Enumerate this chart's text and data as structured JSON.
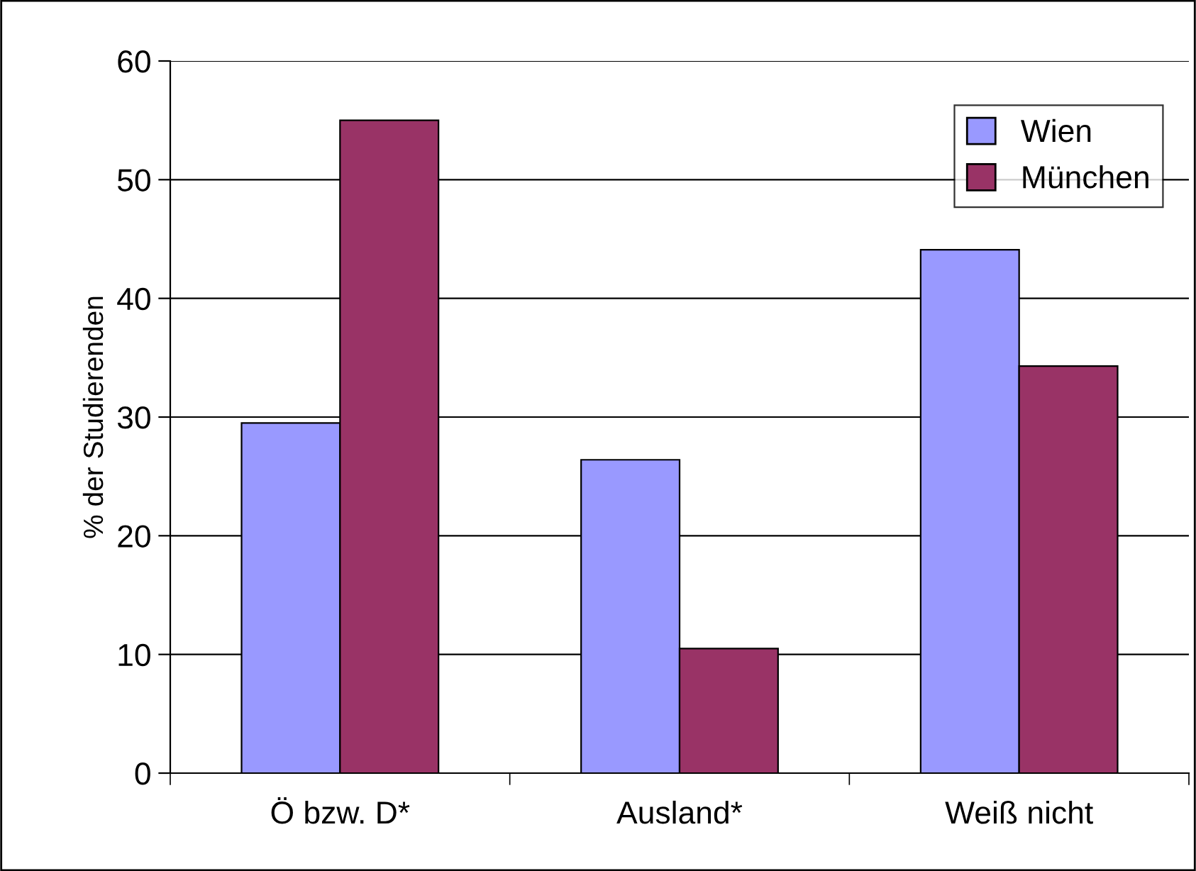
{
  "chart_data": {
    "type": "bar",
    "ylabel": "% der Studierenden",
    "categories": [
      "Ö bzw. D*",
      "Ausland*",
      "Weiß nicht"
    ],
    "series": [
      {
        "name": "Wien",
        "color": "#9999ff",
        "values": [
          29.5,
          26.4,
          44.1
        ]
      },
      {
        "name": "München",
        "color": "#993366",
        "values": [
          55.0,
          10.5,
          34.3
        ]
      }
    ],
    "ylim": [
      0,
      60
    ],
    "yticks": [
      0,
      10,
      20,
      30,
      40,
      50,
      60
    ],
    "grid": "y",
    "legend": "top right"
  }
}
